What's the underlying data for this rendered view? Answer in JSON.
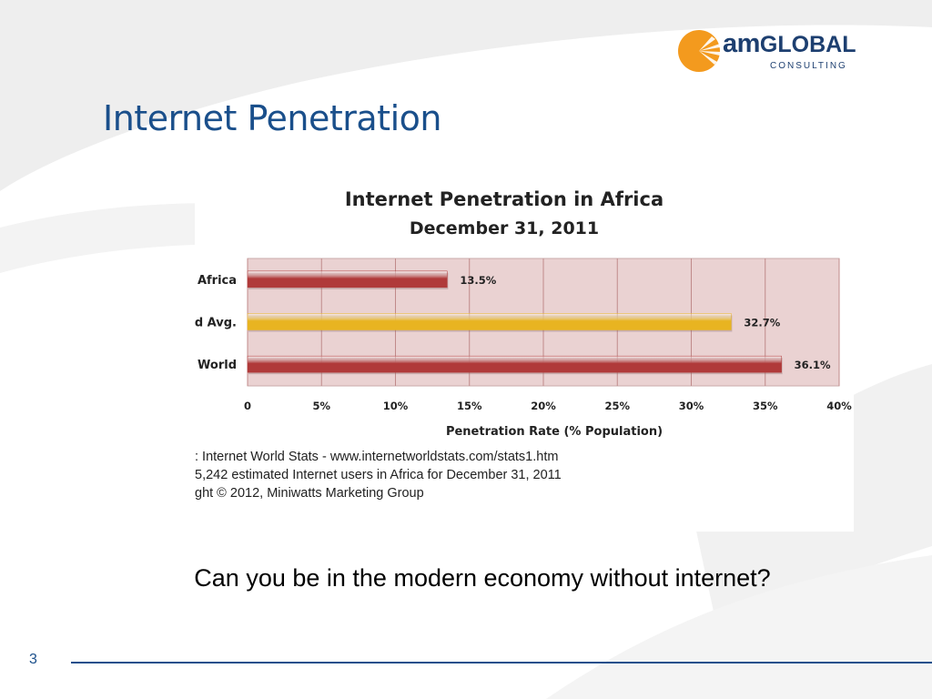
{
  "slide": {
    "title": "Internet Penetration",
    "caption": "Can you be in the modern economy without internet?",
    "page_number": "3"
  },
  "logo": {
    "wordmark_prefix": "am",
    "wordmark_main": "GLOBAL",
    "tagline": "CONSULTING",
    "icon": "sunburst-icon",
    "colors": {
      "orange": "#f39a1e",
      "navy": "#1d3f70"
    }
  },
  "chart_data": {
    "type": "bar",
    "orientation": "horizontal",
    "title": "Internet Penetration in Africa",
    "subtitle": "December 31, 2011",
    "xlabel": "Penetration Rate (% Population)",
    "categories": [
      "Africa",
      "ld Avg.",
      "World"
    ],
    "values": [
      13.5,
      32.7,
      36.1
    ],
    "data_labels": [
      "13.5%",
      "32.7%",
      "36.1%"
    ],
    "bar_colors": [
      "#b03a3a",
      "#e8b421",
      "#b03a3a"
    ],
    "xlim": [
      0,
      40
    ],
    "xticks": [
      "0",
      "5%",
      "10%",
      "15%",
      "20%",
      "25%",
      "30%",
      "35%",
      "40%"
    ],
    "grid": true,
    "plot_background": "#ead2d2",
    "source_notes": [
      ": Internet World Stats  -  www.internetworldstats.com/stats1.htm",
      "5,242 estimated Internet users in Africa for December 31,  2011",
      "ght © 2012, Miniwatts Marketing Group"
    ]
  }
}
